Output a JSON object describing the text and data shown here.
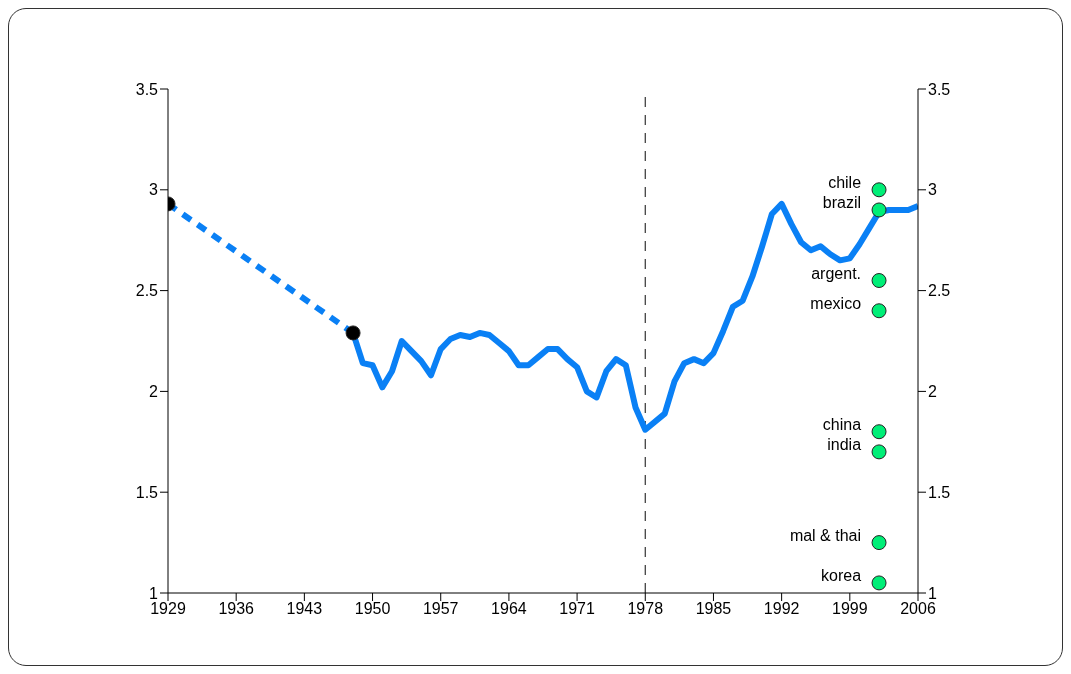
{
  "chart_data": {
    "type": "line",
    "xlim": [
      1929,
      2006
    ],
    "xticks": [
      1929,
      1936,
      1943,
      1950,
      1957,
      1964,
      1971,
      1978,
      1985,
      1992,
      1999,
      2006
    ],
    "ylim": [
      1,
      3.5
    ],
    "yticks": [
      1,
      1.5,
      2,
      2.5,
      3,
      3.5
    ],
    "y2lim": [
      1,
      3.5
    ],
    "y2ticks": [
      1,
      1.5,
      2,
      2.5,
      3,
      3.5
    ],
    "grid": false,
    "series": [
      {
        "line_style": "dashed",
        "marker": "none",
        "color": "#0a80f5",
        "x": [
          1929,
          1948
        ],
        "values": [
          2.93,
          2.29
        ]
      },
      {
        "line_style": "solid",
        "marker": "none",
        "color": "#0a80f5",
        "x": [
          1948,
          1949,
          1950,
          1951,
          1952,
          1953,
          1954,
          1955,
          1956,
          1957,
          1958,
          1959,
          1960,
          1961,
          1962,
          1963,
          1964,
          1965,
          1966,
          1967,
          1968,
          1969,
          1970,
          1971,
          1972,
          1973,
          1974,
          1975,
          1976,
          1977,
          1978,
          1980,
          1981,
          1982,
          1983,
          1984,
          1985,
          1986,
          1987,
          1988,
          1989,
          1990,
          1991,
          1992,
          1993,
          1994,
          1995,
          1996,
          1997,
          1998,
          1999,
          2000,
          2001,
          2002,
          2003,
          2004,
          2005,
          2006
        ],
        "values": [
          2.29,
          2.14,
          2.13,
          2.02,
          2.1,
          2.25,
          2.2,
          2.15,
          2.08,
          2.21,
          2.26,
          2.28,
          2.27,
          2.29,
          2.28,
          2.24,
          2.2,
          2.13,
          2.13,
          2.17,
          2.21,
          2.21,
          2.16,
          2.12,
          2.0,
          1.97,
          2.1,
          2.16,
          2.13,
          1.92,
          1.81,
          1.89,
          2.05,
          2.14,
          2.16,
          2.14,
          2.19,
          2.3,
          2.42,
          2.45,
          2.57,
          2.72,
          2.88,
          2.93,
          2.83,
          2.74,
          2.7,
          2.72,
          2.68,
          2.65,
          2.66,
          2.73,
          2.81,
          2.89,
          2.9,
          2.9,
          2.9,
          2.92
        ]
      },
      {
        "type": "scatter",
        "marker": "circle",
        "color": "#000000",
        "x": [
          1929,
          1948
        ],
        "values": [
          2.93,
          2.29
        ]
      },
      {
        "type": "scatter",
        "marker": "circle",
        "name": "chile",
        "color": "#00ee77",
        "x": [
          2002
        ],
        "values": [
          3.0
        ]
      },
      {
        "type": "scatter",
        "marker": "circle",
        "name": "brazil",
        "color": "#00ee77",
        "x": [
          2002
        ],
        "values": [
          2.9
        ]
      },
      {
        "type": "scatter",
        "marker": "circle",
        "name": "argent.",
        "color": "#00ee77",
        "x": [
          2002
        ],
        "values": [
          2.55
        ]
      },
      {
        "type": "scatter",
        "marker": "circle",
        "name": "mexico",
        "color": "#00ee77",
        "x": [
          2002
        ],
        "values": [
          2.4
        ]
      },
      {
        "type": "scatter",
        "marker": "circle",
        "name": "china",
        "color": "#00ee77",
        "x": [
          2002
        ],
        "values": [
          1.8
        ]
      },
      {
        "type": "scatter",
        "marker": "circle",
        "name": "india",
        "color": "#00ee77",
        "x": [
          2002
        ],
        "values": [
          1.7
        ]
      },
      {
        "type": "scatter",
        "marker": "circle",
        "name": "mal & thai",
        "color": "#00ee77",
        "x": [
          2002
        ],
        "values": [
          1.25
        ]
      },
      {
        "type": "scatter",
        "marker": "circle",
        "name": "korea",
        "color": "#00ee77",
        "x": [
          2002
        ],
        "values": [
          1.05
        ]
      }
    ],
    "ref_lines": [
      {
        "axis": "x",
        "value": 1978,
        "line_style": "dashed",
        "color": "#333333"
      }
    ]
  }
}
